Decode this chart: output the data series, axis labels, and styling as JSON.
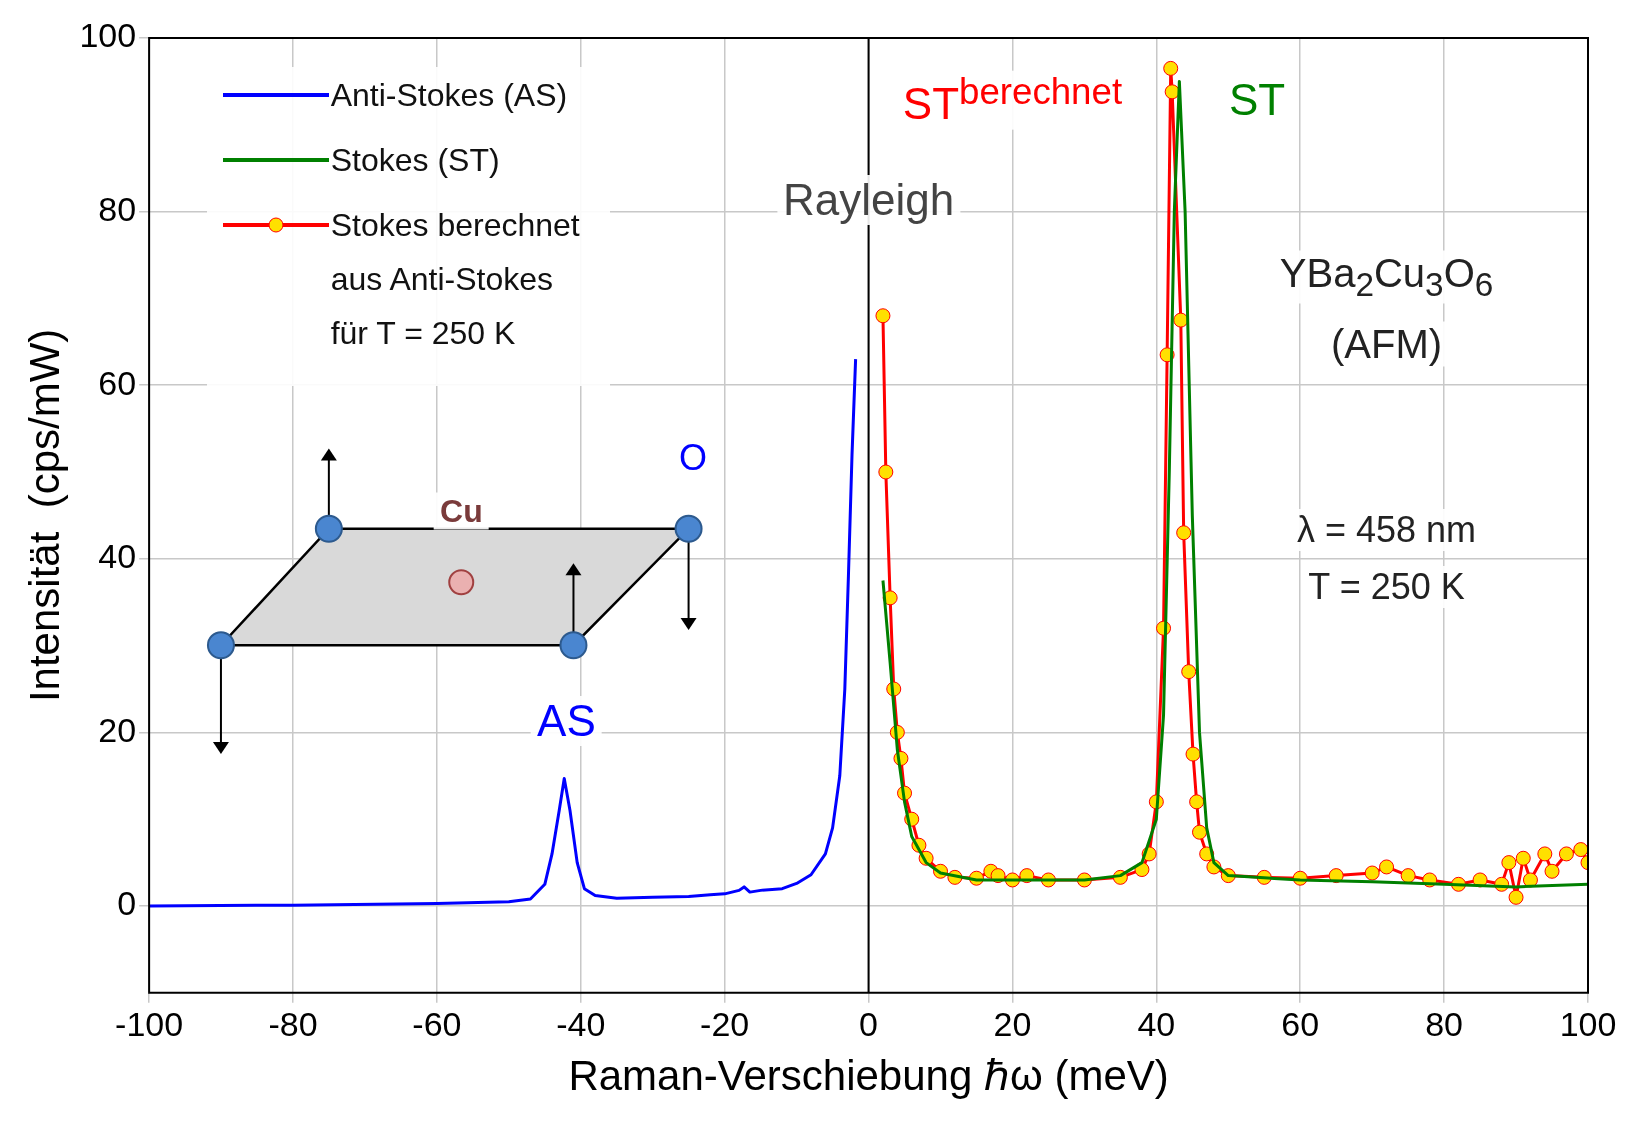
{
  "chart_data": {
    "type": "line",
    "xlabel": "Raman-Verschiebung ℏω (meV)",
    "ylabel": "Intensität  (cps/mW)",
    "xlim": [
      -100,
      100
    ],
    "xticks": [
      -100,
      -80,
      -60,
      -40,
      -20,
      0,
      20,
      40,
      60,
      80,
      100
    ],
    "ylim": [
      -10,
      100
    ],
    "yticks": [
      0,
      20,
      40,
      60,
      80,
      100
    ],
    "grid": true,
    "legend": "top left",
    "line_style": "solid",
    "ref_lines": [
      {
        "axis": "x",
        "value": 0,
        "label": "Rayleigh",
        "color": "#000000"
      }
    ],
    "annotations": [
      "AS",
      "ST$^{berechnet}$",
      "ST",
      "YBa$_{2}$Cu$_{3}$O$_{6}$",
      "(AFM)",
      "λ = 458 nm",
      "T = 250 K",
      "Cu",
      "O"
    ],
    "series": [
      {
        "name": "Anti-Stokes (AS)",
        "color": "#0000ff",
        "marker": "none",
        "x": [
          -100,
          -80,
          -60,
          -50,
          -47,
          -45,
          -44,
          -43,
          -42.3,
          -41.5,
          -40.5,
          -39.5,
          -38,
          -35,
          -30,
          -25,
          -22,
          -20,
          -18,
          -17.3,
          -16.5,
          -15,
          -12,
          -10,
          -8,
          -6,
          -5,
          -4,
          -3.3,
          -2.8,
          -2.3,
          -1.8
        ],
        "values": [
          0,
          0.1,
          0.3,
          0.5,
          0.8,
          2.5,
          6,
          11,
          14.7,
          11,
          5,
          2,
          1.2,
          0.9,
          1,
          1.1,
          1.3,
          1.4,
          1.8,
          2.2,
          1.6,
          1.8,
          2,
          2.6,
          3.6,
          6,
          9,
          15,
          25,
          38,
          52,
          63
        ]
      },
      {
        "name": "Stokes (ST)",
        "color": "#008000",
        "marker": "none",
        "x": [
          2,
          3,
          4,
          5,
          6,
          8,
          10,
          15,
          20,
          30,
          35,
          38,
          40,
          41,
          41.8,
          42.5,
          43.2,
          44,
          45,
          46,
          47,
          48,
          50,
          60,
          70,
          80,
          90,
          100
        ],
        "values": [
          37.5,
          28,
          18,
          12,
          8,
          5,
          3.8,
          3,
          3,
          3,
          3.5,
          5,
          10,
          22,
          50,
          80,
          95,
          80,
          45,
          20,
          9,
          5,
          3.5,
          3,
          2.8,
          2.5,
          2.2,
          2.5
        ]
      },
      {
        "name": "Stokes berechnet aus Anti-Stokes für T = 250 K",
        "color": "#ff0000",
        "marker": "circle",
        "x": [
          2,
          2.4,
          3,
          3.5,
          4,
          4.5,
          5,
          6,
          7,
          8,
          10,
          12,
          15,
          17,
          18,
          20,
          22,
          25,
          30,
          35,
          38,
          39,
          40,
          41,
          41.5,
          42,
          42.2,
          43.4,
          43.8,
          44.5,
          45.1,
          45.6,
          46,
          47,
          48,
          50,
          55,
          60,
          65,
          70,
          72,
          75,
          78,
          82,
          85,
          88,
          89,
          90,
          91,
          92,
          94,
          95,
          97,
          99,
          100
        ],
        "values": [
          68,
          50,
          35.5,
          25,
          20,
          17,
          13,
          10,
          7,
          5.5,
          4,
          3.3,
          3.2,
          4,
          3.5,
          3,
          3.5,
          3,
          3,
          3.3,
          4.2,
          6,
          12,
          32,
          63.5,
          96.5,
          93.8,
          67.5,
          43,
          27,
          17.5,
          12,
          8.5,
          6,
          4.5,
          3.5,
          3.3,
          3.2,
          3.5,
          3.8,
          4.5,
          3.5,
          3,
          2.5,
          3,
          2.5,
          5,
          1,
          5.5,
          3,
          6,
          4,
          6,
          6.5,
          5
        ]
      }
    ]
  }
}
